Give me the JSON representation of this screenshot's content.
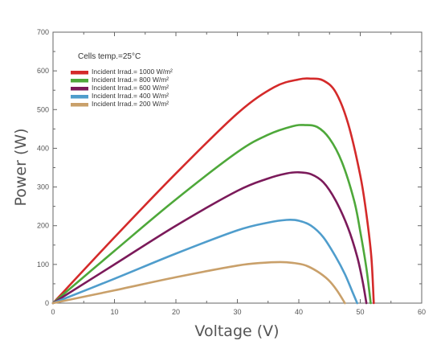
{
  "chart_data": {
    "type": "line",
    "xlabel": "Voltage (V)",
    "ylabel": "Power (W)",
    "xlim": [
      0,
      60
    ],
    "ylim": [
      0,
      700
    ],
    "x_ticks": [
      "0",
      "10",
      "20",
      "30",
      "40",
      "50",
      "60"
    ],
    "y_ticks": [
      "0",
      "100",
      "200",
      "300",
      "400",
      "500",
      "600",
      "700"
    ],
    "grid": false,
    "legend_position": "top-left",
    "legend_title": "Cells temp.=25°C",
    "series": [
      {
        "name": "Incident Irrad.= 1000 W/m²",
        "color": "#d42a2a",
        "x": [
          0,
          10,
          20,
          30,
          36,
          40,
          42,
          44,
          46,
          48,
          50,
          51,
          51.8,
          52.2
        ],
        "y": [
          0,
          170,
          335,
          490,
          558,
          578,
          580,
          575,
          545,
          465,
          330,
          230,
          120,
          0
        ]
      },
      {
        "name": "Incident Irrad.= 800 W/m²",
        "color": "#4ea83a",
        "x": [
          0,
          10,
          20,
          30,
          35,
          39,
          41,
          43,
          45,
          47,
          49,
          50,
          51,
          51.7
        ],
        "y": [
          0,
          135,
          268,
          390,
          435,
          457,
          460,
          455,
          425,
          365,
          265,
          185,
          90,
          0
        ]
      },
      {
        "name": "Incident Irrad.= 600 W/m²",
        "color": "#7b1a5a",
        "x": [
          0,
          10,
          20,
          30,
          35,
          38,
          40,
          42,
          44,
          46,
          48,
          49.5,
          50.4,
          51
        ],
        "y": [
          0,
          100,
          200,
          290,
          322,
          335,
          338,
          333,
          312,
          265,
          195,
          120,
          55,
          0
        ]
      },
      {
        "name": "Incident Irrad.= 400 W/m²",
        "color": "#4f9dcc",
        "x": [
          0,
          10,
          20,
          30,
          35,
          38,
          40,
          42,
          44,
          46,
          47.5,
          48.7,
          49.5
        ],
        "y": [
          0,
          63,
          128,
          188,
          208,
          215,
          213,
          200,
          170,
          120,
          75,
          30,
          0
        ]
      },
      {
        "name": "Incident Irrad.= 200 W/m²",
        "color": "#c9a06a",
        "x": [
          0,
          10,
          20,
          30,
          34,
          37,
          39,
          41,
          43,
          44.8,
          46.2,
          47.5
        ],
        "y": [
          0,
          33,
          67,
          97,
          104,
          106,
          104,
          98,
          82,
          60,
          33,
          0
        ]
      }
    ]
  }
}
